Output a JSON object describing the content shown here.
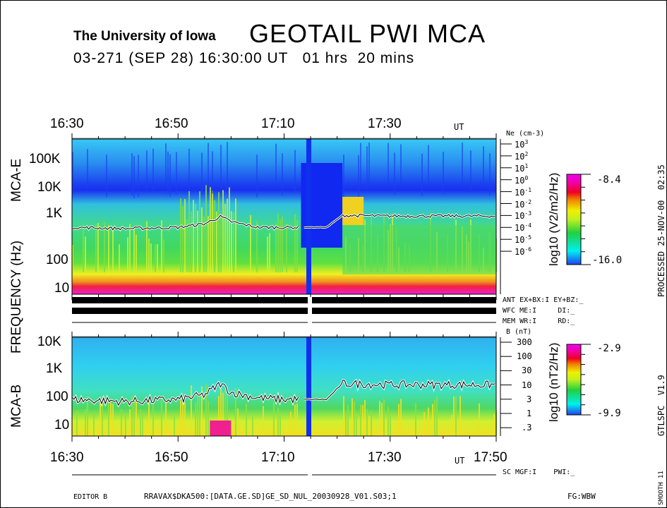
{
  "header": {
    "institution": "The University of Iowa",
    "title": "GEOTAIL PWI MCA",
    "subtitle": "03-271 (SEP 28) 16:30:00 UT   01 hrs  20 mins"
  },
  "time_axis": {
    "top_ticks": [
      "16:30",
      "16:50",
      "17:10",
      "17:30"
    ],
    "top_unit": "UT",
    "bottom_ticks": [
      "16:30",
      "16:50",
      "17:10",
      "17:30",
      "17:50"
    ],
    "bottom_unit": "UT"
  },
  "ylabels": {
    "frequency": "FREQUENCY (Hz)",
    "mca_e": "MCA-E",
    "mca_b": "MCA-B"
  },
  "chart_data": [
    {
      "type": "heatmap",
      "title": "MCA-E",
      "ylabel": "Frequency (Hz)",
      "yticks": [
        "100K",
        "10K",
        "1K",
        "100",
        "10"
      ],
      "right_axis": {
        "label": "Ne (cm-3)",
        "ticks": [
          "10^3",
          "10^2",
          "10^1",
          "10^0",
          "10^-1",
          "10^-2",
          "10^-3",
          "10^-4",
          "10^-5",
          "10^-6"
        ]
      },
      "colorbar": {
        "label": "log10 (V2/m2/Hz)",
        "max": "-8.4",
        "min": "-16.0"
      },
      "xrange": [
        "16:30",
        "17:50"
      ],
      "data_gap": [
        "17:13",
        "17:14"
      ],
      "line_series": {
        "name": "Ne",
        "x_min": [
          0,
          10,
          20,
          25,
          28,
          30,
          35,
          40,
          43,
          48,
          51,
          60,
          80
        ],
        "values": [
          0.0001,
          8e-05,
          0.0001,
          0.0002,
          0.0008,
          0.0003,
          0.0001,
          0.0001,
          0.0001,
          0.0001,
          0.001,
          0.0009,
          0.0009
        ]
      }
    },
    {
      "type": "heatmap",
      "title": "MCA-B",
      "ylabel": "Frequency (Hz)",
      "yticks": [
        "10K",
        "1K",
        "100",
        "10"
      ],
      "right_axis": {
        "label": "B (nT)",
        "ticks": [
          "300",
          "100",
          "30",
          "10",
          "3",
          "1",
          ".3"
        ]
      },
      "colorbar": {
        "label": "log10 (nT2/Hz)",
        "max": "-2.9",
        "min": "-9.9"
      },
      "xrange": [
        "16:30",
        "17:50"
      ],
      "data_gap": [
        "17:13",
        "17:14"
      ],
      "line_series": {
        "name": "B",
        "x_min": [
          0,
          10,
          20,
          25,
          28,
          30,
          35,
          40,
          43,
          48,
          51,
          60,
          80
        ],
        "values": [
          3.5,
          3,
          3.5,
          5,
          12,
          6,
          4,
          3.5,
          3.5,
          3.5,
          12,
          11,
          11
        ]
      }
    }
  ],
  "status": {
    "ant": "ANT EX+BX:I EY+BZ:_",
    "wfc": "WFC ME:I     DI:_",
    "mem": "MEM WR:I     RD:_",
    "sc": "SC MGF:I    PWI:_"
  },
  "side": {
    "processed": "PROCESSED 25-NOV-00  02:35",
    "version": "GTLSPC  V1.9",
    "smooth": "SMOOTH 11"
  },
  "footer": {
    "editor": "EDITOR B",
    "file": "RRAVAX$DKA500:[DATA.GE.SD]GE_SD_NUL_20030928_V01.S03;1",
    "fg": "FG:WBW"
  }
}
